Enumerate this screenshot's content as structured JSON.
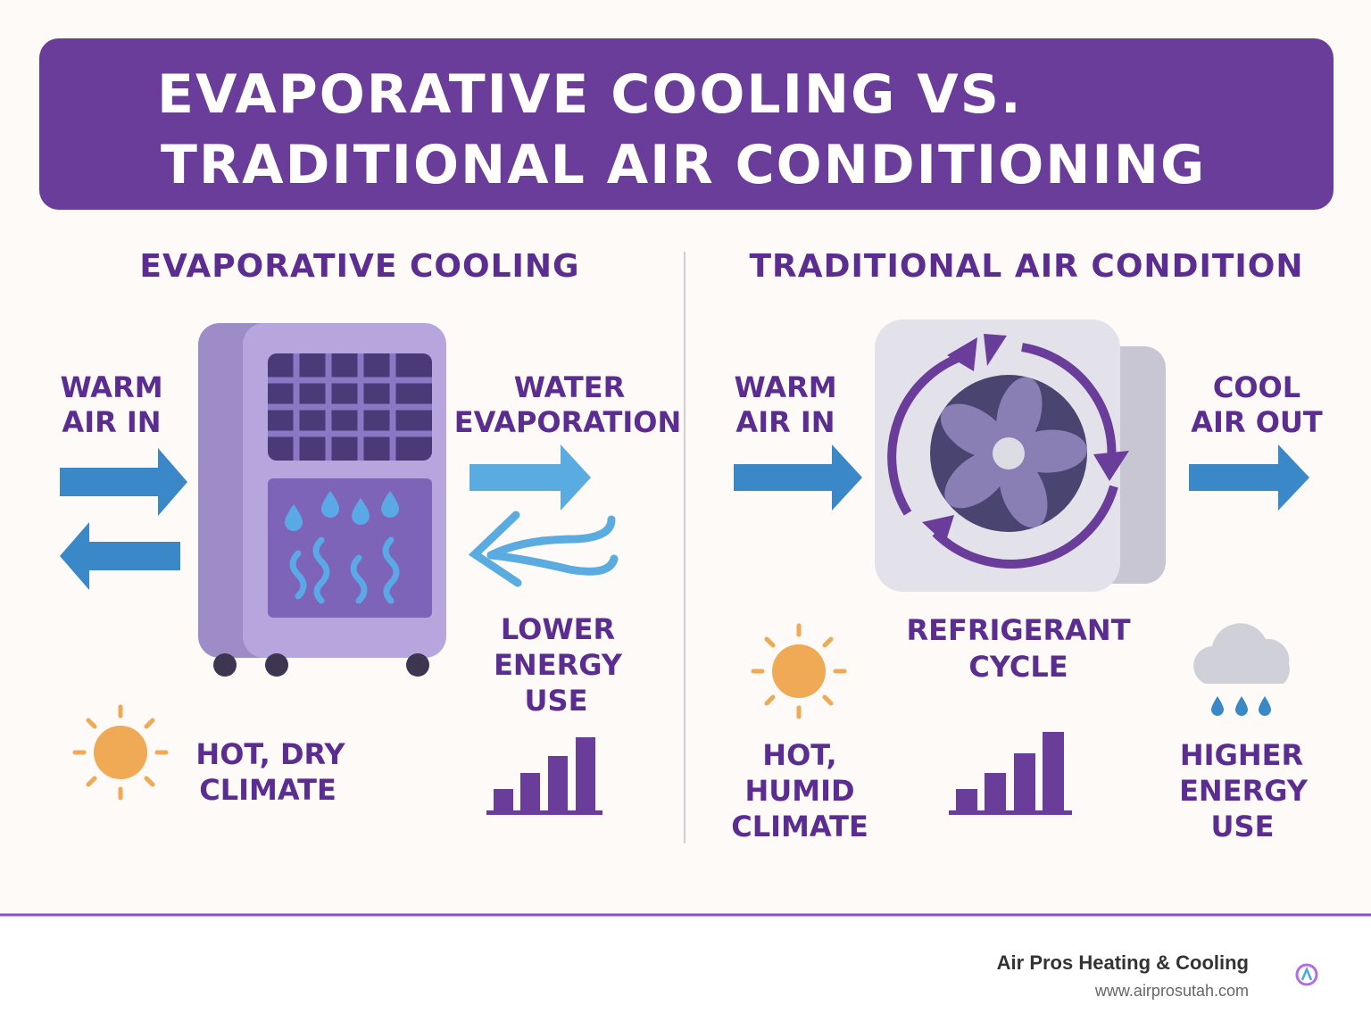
{
  "header": {
    "title_lines": [
      "EVAPORATIVE COOLING VS.",
      "TRADITIONAL AIR CONDITIONING"
    ]
  },
  "left": {
    "heading": "EVAPORATIVE COOLING",
    "labels": [
      {
        "lines": [
          "WARM",
          "AIR IN"
        ]
      },
      {
        "lines": [
          "WATER",
          "EVAPORATION"
        ]
      },
      {
        "lines": [
          "LOWER",
          "ENERGY",
          "USE"
        ]
      },
      {
        "lines": [
          "HOT, DRY",
          "CLIMATE"
        ]
      }
    ]
  },
  "right": {
    "heading": "TRADITIONAL AIR CONDITION",
    "labels": [
      {
        "lines": [
          "WARM",
          "AIR IN"
        ]
      },
      {
        "lines": [
          "COOL",
          "AIR OUT"
        ]
      },
      {
        "lines": [
          "REFRIGERANT",
          "CYCLE"
        ]
      },
      {
        "lines": [
          "HOT,",
          "HUMID",
          "CLIMATE"
        ]
      },
      {
        "lines": [
          "HIGHER",
          "ENERGY",
          "USE"
        ]
      }
    ]
  },
  "footer": {
    "company": "Air Pros Heating & Cooling",
    "website": "www.airprosutah.com"
  }
}
